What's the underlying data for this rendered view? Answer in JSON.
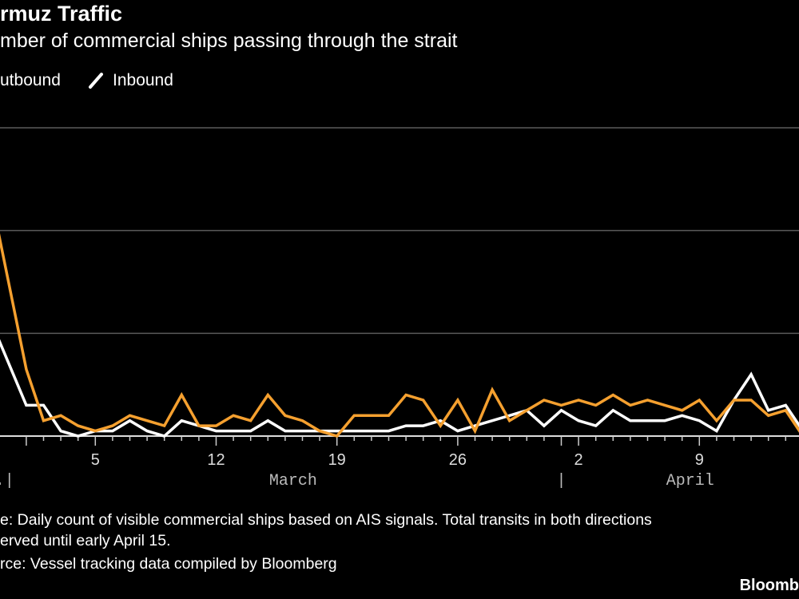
{
  "header": {
    "title": "rmuz Traffic",
    "subtitle": "mber of commercial ships passing through the strait"
  },
  "legend": {
    "items": [
      {
        "label": "utbound",
        "color": "#f5a02f"
      },
      {
        "label": "Inbound",
        "color": "#ffffff"
      }
    ]
  },
  "footer": {
    "note_line1": "e: Daily count of visible commercial ships based on AIS signals. Total transits in both directions",
    "note_line2": "erved until early April 15.",
    "source": "rce: Vessel tracking data compiled by Bloomberg",
    "brand": "Bloomb"
  },
  "chart_data": {
    "type": "line",
    "x": [
      "Feb 27",
      "Feb 28",
      "Mar 1",
      "Mar 2",
      "Mar 3",
      "Mar 4",
      "Mar 5",
      "Mar 6",
      "Mar 7",
      "Mar 8",
      "Mar 9",
      "Mar 10",
      "Mar 11",
      "Mar 12",
      "Mar 13",
      "Mar 14",
      "Mar 15",
      "Mar 16",
      "Mar 17",
      "Mar 18",
      "Mar 19",
      "Mar 20",
      "Mar 21",
      "Mar 22",
      "Mar 23",
      "Mar 24",
      "Mar 25",
      "Mar 26",
      "Mar 27",
      "Mar 28",
      "Mar 29",
      "Mar 30",
      "Mar 31",
      "Apr 1",
      "Apr 2",
      "Apr 3",
      "Apr 4",
      "Apr 5",
      "Apr 6",
      "Apr 7",
      "Apr 8",
      "Apr 9",
      "Apr 10",
      "Apr 11",
      "Apr 12",
      "Apr 13",
      "Apr 14",
      "Apr 15"
    ],
    "series": [
      {
        "name": "utbound",
        "color": "#f5a02f",
        "values": [
          51,
          46,
          13,
          3,
          4,
          2,
          1,
          2,
          4,
          3,
          2,
          8,
          2,
          2,
          4,
          3,
          8,
          4,
          3,
          1,
          0,
          4,
          4,
          4,
          8,
          7,
          2,
          7,
          1,
          9,
          3,
          5,
          7,
          6,
          7,
          6,
          8,
          6,
          7,
          6,
          5,
          7,
          3,
          7,
          7,
          4,
          5,
          0
        ]
      },
      {
        "name": "Inbound",
        "color": "#ffffff",
        "values": [
          57,
          22,
          6,
          6,
          1,
          0,
          1,
          1,
          3,
          1,
          0,
          3,
          2,
          1,
          1,
          1,
          3,
          1,
          1,
          1,
          1,
          1,
          1,
          1,
          2,
          2,
          3,
          1,
          2,
          3,
          4,
          5,
          2,
          5,
          3,
          2,
          5,
          3,
          3,
          3,
          4,
          3,
          1,
          7,
          12,
          5,
          6,
          1
        ]
      }
    ],
    "xticks": [
      {
        "date": "Mar 5",
        "label": "5"
      },
      {
        "date": "Mar 12",
        "label": "12"
      },
      {
        "date": "Mar 19",
        "label": "19"
      },
      {
        "date": "Mar 26",
        "label": "26"
      },
      {
        "date": "Apr 2",
        "label": "2"
      },
      {
        "date": "Apr 9",
        "label": "9"
      }
    ],
    "month_labels": [
      {
        "label": "eb.|",
        "date": "Feb 28"
      },
      {
        "label": "March",
        "date": "Mar 16"
      },
      {
        "label": "|",
        "date": "Apr 1"
      },
      {
        "label": "April",
        "date": "Apr 8"
      }
    ],
    "ylim": [
      0,
      60
    ],
    "ygrid": [
      20,
      40,
      60
    ],
    "grid": true,
    "legend_position": "top-left",
    "gridline_color": "#5a5a5a"
  }
}
